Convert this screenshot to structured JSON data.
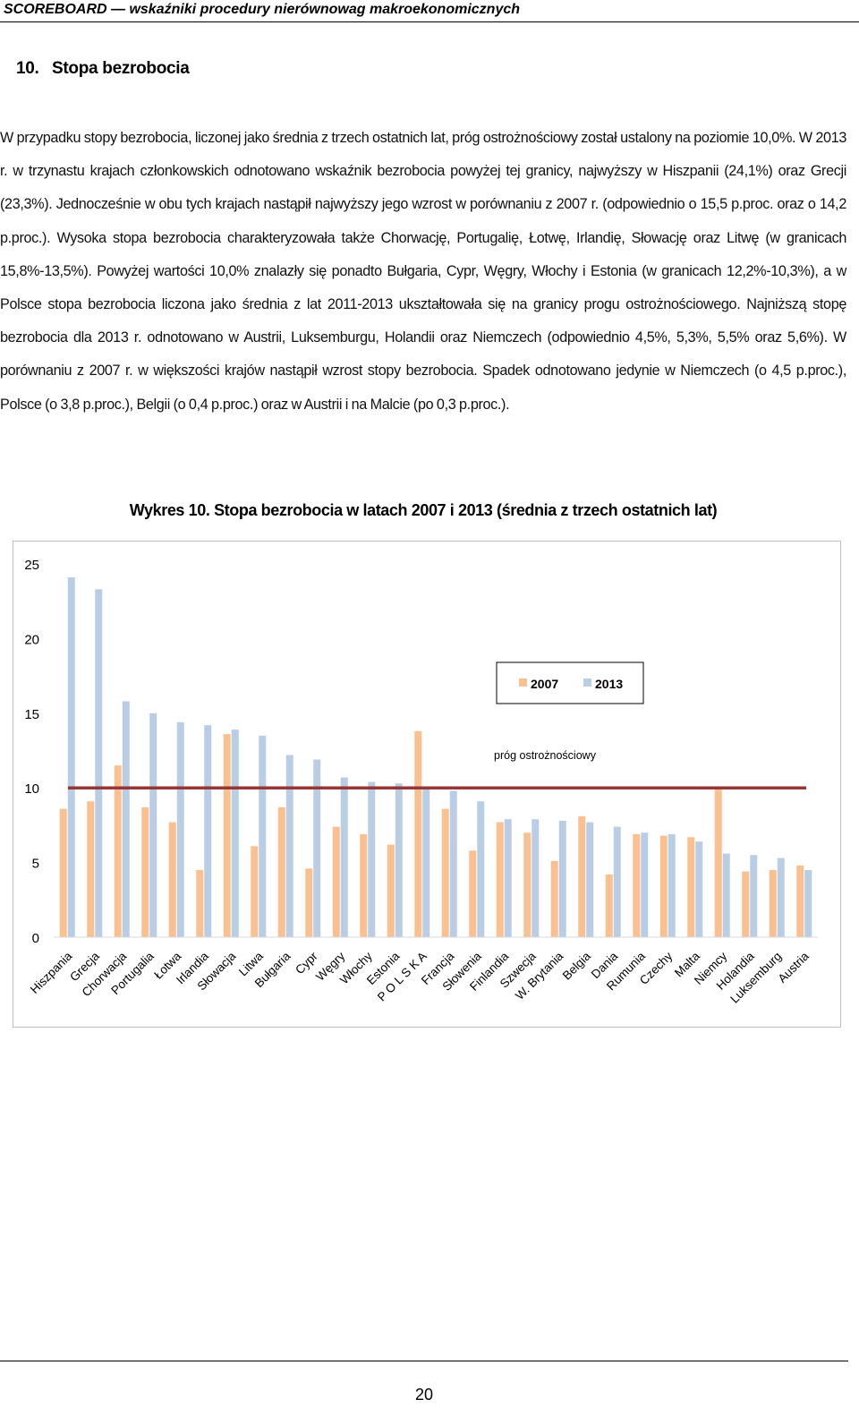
{
  "header": {
    "running_title": "SCOREBOARD — wskaźniki procedury nierównowag makroekonomicznych"
  },
  "section": {
    "number": "10.",
    "title": "Stopa bezrobocia"
  },
  "paragraph": "W przypadku stopy bezrobocia, liczonej jako średnia z trzech ostatnich lat, próg ostrożnościowy został ustalony na poziomie 10,0%. W 2013 r. w trzynastu krajach członkowskich odnotowano wskaźnik bezrobocia powyżej tej granicy, najwyższy w Hiszpanii (24,1%) oraz Grecji (23,3%). Jednocześnie w obu tych krajach nastąpił najwyższy jego wzrost w porównaniu z 2007 r. (odpowiednio o 15,5 p.proc. oraz o 14,2 p.proc.). Wysoka stopa bezrobocia charakteryzowała także Chorwację, Portugalię, Łotwę, Irlandię, Słowację oraz Litwę (w granicach 15,8%-13,5%). Powyżej wartości 10,0% znalazły się ponadto Bułgaria, Cypr, Węgry, Włochy i Estonia (w granicach 12,2%-10,3%), a w Polsce stopa bezrobocia liczona jako średnia z lat 2011-2013 ukształtowała się na granicy progu ostrożnościowego. Najniższą stopę bezrobocia dla 2013 r. odnotowano w Austrii, Luksemburgu, Holandii oraz Niemczech (odpowiednio 4,5%, 5,3%, 5,5% oraz 5,6%). W porównaniu z 2007 r. w większości krajów nastąpił wzrost stopy bezrobocia. Spadek odnotowano jedynie w Niemczech (o 4,5 p.proc.), Polsce (o 3,8 p.proc.), Belgii (o 0,4 p.proc.) oraz w Austrii i na Malcie (po 0,3 p.proc.).",
  "chart_title": "Wykres 10. Stopa bezrobocia w latach 2007 i 2013 (średnia z trzech ostatnich lat)",
  "chart_data": {
    "type": "bar",
    "title": "Wykres 10. Stopa bezrobocia w latach 2007 i 2013 (średnia z trzech ostatnich lat)",
    "categories": [
      "Hiszpania",
      "Grecja",
      "Chorwacja",
      "Portugalia",
      "Łotwa",
      "Irlandia",
      "Słowacja",
      "Litwa",
      "Bułgaria",
      "Cypr",
      "Węgry",
      "Włochy",
      "Estonia",
      "P O L S K A",
      "Francja",
      "Słowenia",
      "Finlandia",
      "Szwecja",
      "W. Brytania",
      "Belgia",
      "Dania",
      "Rumunia",
      "Czechy",
      "Malta",
      "Niemcy",
      "Holandia",
      "Luksemburg",
      "Austria"
    ],
    "series": [
      {
        "name": "2007",
        "color": "#fac090",
        "values": [
          8.6,
          9.1,
          11.5,
          8.7,
          7.7,
          4.5,
          13.6,
          6.1,
          8.7,
          4.6,
          7.4,
          6.9,
          6.2,
          13.8,
          8.6,
          5.8,
          7.7,
          7.0,
          5.1,
          8.1,
          4.2,
          6.9,
          6.8,
          6.7,
          10.1,
          4.4,
          4.5,
          4.8
        ]
      },
      {
        "name": "2013",
        "color": "#b9cde5",
        "values": [
          24.1,
          23.3,
          15.8,
          15.0,
          14.4,
          14.2,
          13.9,
          13.5,
          12.2,
          11.9,
          10.7,
          10.4,
          10.3,
          10.0,
          9.8,
          9.1,
          7.9,
          7.9,
          7.8,
          7.7,
          7.4,
          7.0,
          6.9,
          6.4,
          5.6,
          5.5,
          5.3,
          4.5
        ]
      }
    ],
    "ylim": [
      0,
      25
    ],
    "yticks": [
      0,
      5,
      10,
      15,
      20,
      25
    ],
    "threshold": {
      "value": 10,
      "label": "próg ostrożnościowy",
      "color": "#953735"
    },
    "legend_position": "top-right",
    "grid": false
  },
  "page_number": "20"
}
